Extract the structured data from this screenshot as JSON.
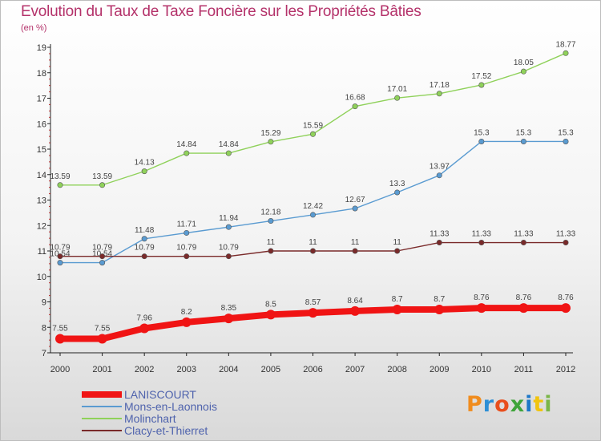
{
  "header": {
    "title": "Evolution du Taux de Taxe Foncière sur les Propriétés Bâties",
    "subtitle": "(en %)"
  },
  "logo": {
    "text": "Proxiti",
    "colors": [
      "#f08c1e",
      "#2d8fd6",
      "#e94f1d",
      "#3ea43a",
      "#1e78c8",
      "#f1c40f",
      "#7ab648"
    ]
  },
  "chart_data": {
    "type": "line",
    "title": "Evolution du Taux de Taxe Foncière sur les Propriétés Bâties",
    "ylabel": "(en %)",
    "xlabel": "",
    "x": [
      "2000",
      "2001",
      "2002",
      "2003",
      "2004",
      "2005",
      "2006",
      "2007",
      "2008",
      "2009",
      "2010",
      "2011",
      "2012"
    ],
    "ylim": [
      7,
      19
    ],
    "yticks": [
      "7",
      "8",
      "9",
      "10",
      "11",
      "12",
      "13",
      "14",
      "15",
      "16",
      "17",
      "18",
      "19"
    ],
    "grid": false,
    "legend_position": "bottom-left",
    "series": [
      {
        "name": "Molinchart",
        "color": "#8fd15a",
        "values": [
          13.59,
          13.59,
          14.13,
          14.84,
          14.84,
          15.29,
          15.59,
          16.68,
          17.01,
          17.18,
          17.52,
          18.05,
          18.77
        ],
        "labels": [
          "13.59",
          "13.59",
          "14.13",
          "14.84",
          "14.84",
          "15.29",
          "15.59",
          "16.68",
          "17.01",
          "17.18",
          "17.52",
          "18.05",
          "18.77"
        ]
      },
      {
        "name": "Mons-en-Laonnois",
        "color": "#5a9bd1",
        "values": [
          10.54,
          10.54,
          11.48,
          11.71,
          11.94,
          12.18,
          12.42,
          12.67,
          13.3,
          13.97,
          15.3,
          15.3,
          15.3
        ],
        "labels": [
          "10.54",
          "10.54",
          "11.48",
          "11.71",
          "11.94",
          "12.18",
          "12.42",
          "12.67",
          "13.3",
          "13.97",
          "15.3",
          "15.3",
          "15.3"
        ]
      },
      {
        "name": "Clacy-et-Thierret",
        "color": "#7a2a2a",
        "values": [
          10.79,
          10.79,
          10.79,
          10.79,
          10.79,
          11,
          11,
          11,
          11,
          11.33,
          11.33,
          11.33,
          11.33
        ],
        "labels": [
          "10.79",
          "10.79",
          "10.79",
          "10.79",
          "10.79",
          "11",
          "11",
          "11",
          "11",
          "11.33",
          "11.33",
          "11.33",
          "11.33"
        ]
      },
      {
        "name": "LANISCOURT",
        "color": "#f01414",
        "values": [
          7.55,
          7.55,
          7.96,
          8.2,
          8.35,
          8.5,
          8.57,
          8.64,
          8.7,
          8.7,
          8.76,
          8.76,
          8.76
        ],
        "labels": [
          "7.55",
          "7.55",
          "7.96",
          "8.2",
          "8.35",
          "8.5",
          "8.57",
          "8.64",
          "8.7",
          "8.7",
          "8.76",
          "8.76",
          "8.76"
        ]
      }
    ],
    "legend": [
      "LANISCOURT",
      "Mons-en-Laonnois",
      "Molinchart",
      "Clacy-et-Thierret"
    ]
  }
}
